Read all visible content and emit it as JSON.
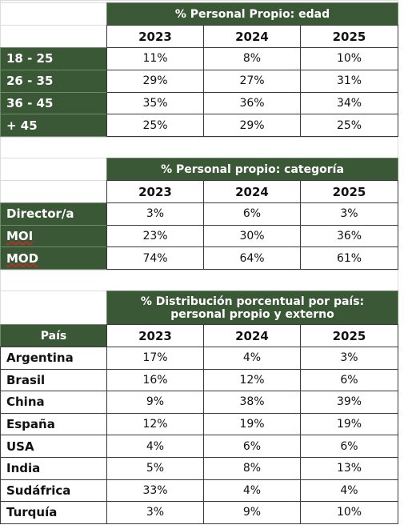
{
  "tables": [
    {
      "title": "% Personal Propio: edad",
      "columns": [
        "2023",
        "2024",
        "2025"
      ],
      "rows": [
        {
          "label": "18 - 25",
          "values": [
            "11%",
            "8%",
            "10%"
          ]
        },
        {
          "label": "26 - 35",
          "values": [
            "29%",
            "27%",
            "31%"
          ]
        },
        {
          "label": "36 - 45",
          "values": [
            "35%",
            "36%",
            "34%"
          ]
        },
        {
          "label": "+ 45",
          "values": [
            "25%",
            "29%",
            "25%"
          ]
        }
      ]
    },
    {
      "title": "% Personal propio: categoría",
      "columns": [
        "2023",
        "2024",
        "2025"
      ],
      "rows": [
        {
          "label": "Director/a",
          "values": [
            "3%",
            "6%",
            "3%"
          ]
        },
        {
          "label": "MOI",
          "values": [
            "23%",
            "30%",
            "36%"
          ]
        },
        {
          "label": "MOD",
          "values": [
            "74%",
            "64%",
            "61%"
          ]
        }
      ]
    },
    {
      "title": "% Distribución porcentual por país: personal propio y externo",
      "corner": "País",
      "columns": [
        "2023",
        "2024",
        "2025"
      ],
      "rows": [
        {
          "label": "Argentina",
          "values": [
            "17%",
            "4%",
            "3%"
          ]
        },
        {
          "label": "Brasil",
          "values": [
            "16%",
            "12%",
            "6%"
          ]
        },
        {
          "label": "China",
          "values": [
            "9%",
            "38%",
            "39%"
          ]
        },
        {
          "label": "España",
          "values": [
            "12%",
            "19%",
            "19%"
          ]
        },
        {
          "label": "USA",
          "values": [
            "4%",
            "6%",
            "6%"
          ]
        },
        {
          "label": "India",
          "values": [
            "5%",
            "8%",
            "13%"
          ]
        },
        {
          "label": "Sudáfrica",
          "values": [
            "33%",
            "4%",
            "4%"
          ]
        },
        {
          "label": "Turquía",
          "values": [
            "3%",
            "9%",
            "10%"
          ]
        }
      ]
    }
  ]
}
